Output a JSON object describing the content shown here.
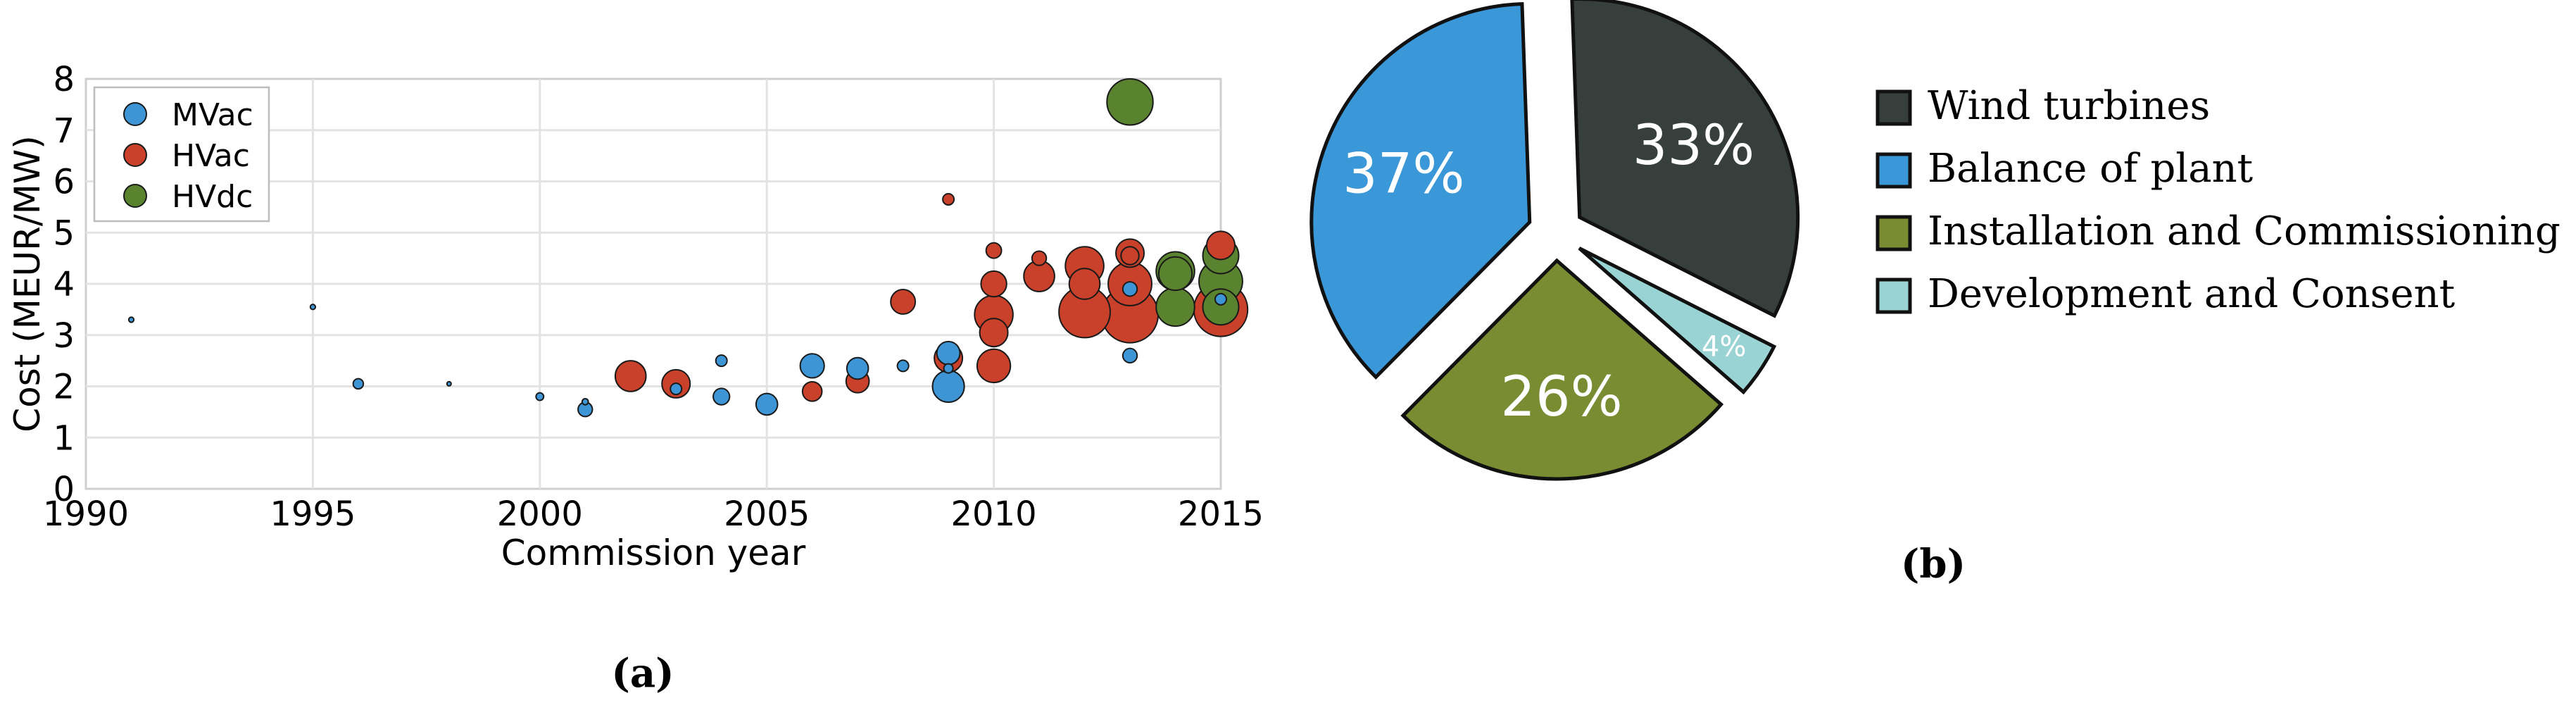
{
  "chart_data": [
    {
      "type": "scatter",
      "panel_label": "(a)",
      "xlabel": "Commission year",
      "ylabel": "Cost (MEUR/MW)",
      "xlim": [
        1990,
        2015
      ],
      "ylim": [
        0,
        8
      ],
      "x_ticks": [
        "1990",
        "1995",
        "2000",
        "2005",
        "2010",
        "2015"
      ],
      "y_ticks": [
        "0",
        "1",
        "2",
        "3",
        "4",
        "5",
        "6",
        "7",
        "8"
      ],
      "grid": true,
      "legend_position": "top-left",
      "series": [
        {
          "name": "MVac",
          "color": "#3d95d5",
          "points": [
            {
              "x": 1991,
              "y": 3.3,
              "r": 0.1
            },
            {
              "x": 1995,
              "y": 3.55,
              "r": 0.1
            },
            {
              "x": 1996,
              "y": 2.05,
              "r": 0.2
            },
            {
              "x": 1998,
              "y": 2.05,
              "r": 0.06
            },
            {
              "x": 2000,
              "y": 1.8,
              "r": 0.15
            },
            {
              "x": 2001,
              "y": 1.7,
              "r": 0.12
            },
            {
              "x": 2001,
              "y": 1.55,
              "r": 0.28
            },
            {
              "x": 2003,
              "y": 1.95,
              "r": 0.22
            },
            {
              "x": 2004,
              "y": 2.5,
              "r": 0.22
            },
            {
              "x": 2004,
              "y": 1.8,
              "r": 0.32
            },
            {
              "x": 2005,
              "y": 1.65,
              "r": 0.42
            },
            {
              "x": 2006,
              "y": 2.4,
              "r": 0.47
            },
            {
              "x": 2007,
              "y": 2.35,
              "r": 0.42
            },
            {
              "x": 2008,
              "y": 2.4,
              "r": 0.22
            },
            {
              "x": 2009,
              "y": 2.65,
              "r": 0.45
            },
            {
              "x": 2009,
              "y": 2.0,
              "r": 0.62
            },
            {
              "x": 2009,
              "y": 2.35,
              "r": 0.18
            },
            {
              "x": 2013,
              "y": 3.9,
              "r": 0.28
            },
            {
              "x": 2013,
              "y": 2.6,
              "r": 0.28
            },
            {
              "x": 2015,
              "y": 3.7,
              "r": 0.22
            }
          ]
        },
        {
          "name": "HVac",
          "color": "#c9412a",
          "points": [
            {
              "x": 2002,
              "y": 2.2,
              "r": 0.6
            },
            {
              "x": 2003,
              "y": 2.05,
              "r": 0.55
            },
            {
              "x": 2006,
              "y": 1.9,
              "r": 0.38
            },
            {
              "x": 2007,
              "y": 2.1,
              "r": 0.45
            },
            {
              "x": 2008,
              "y": 3.65,
              "r": 0.48
            },
            {
              "x": 2009,
              "y": 5.65,
              "r": 0.22
            },
            {
              "x": 2009,
              "y": 2.55,
              "r": 0.55
            },
            {
              "x": 2010,
              "y": 4.65,
              "r": 0.3
            },
            {
              "x": 2010,
              "y": 4.0,
              "r": 0.5
            },
            {
              "x": 2010,
              "y": 3.4,
              "r": 0.75
            },
            {
              "x": 2010,
              "y": 3.05,
              "r": 0.55
            },
            {
              "x": 2010,
              "y": 2.4,
              "r": 0.65
            },
            {
              "x": 2011,
              "y": 4.5,
              "r": 0.28
            },
            {
              "x": 2011,
              "y": 4.15,
              "r": 0.6
            },
            {
              "x": 2012,
              "y": 4.35,
              "r": 0.75
            },
            {
              "x": 2012,
              "y": 4.0,
              "r": 0.6
            },
            {
              "x": 2012,
              "y": 3.45,
              "r": 1.0
            },
            {
              "x": 2013,
              "y": 4.6,
              "r": 0.55
            },
            {
              "x": 2013,
              "y": 4.55,
              "r": 0.35
            },
            {
              "x": 2013,
              "y": 4.0,
              "r": 0.85
            },
            {
              "x": 2013,
              "y": 3.4,
              "r": 1.1
            },
            {
              "x": 2015,
              "y": 4.75,
              "r": 0.55
            },
            {
              "x": 2015,
              "y": 3.5,
              "r": 1.05
            }
          ]
        },
        {
          "name": "HVdc",
          "color": "#5a8330",
          "points": [
            {
              "x": 2013,
              "y": 7.55,
              "r": 0.9
            },
            {
              "x": 2014,
              "y": 4.25,
              "r": 0.75
            },
            {
              "x": 2014,
              "y": 4.2,
              "r": 0.65
            },
            {
              "x": 2014,
              "y": 3.55,
              "r": 0.75
            },
            {
              "x": 2015,
              "y": 4.55,
              "r": 0.7
            },
            {
              "x": 2015,
              "y": 4.05,
              "r": 0.85
            },
            {
              "x": 2015,
              "y": 3.55,
              "r": 0.7
            }
          ]
        }
      ]
    },
    {
      "type": "pie",
      "panel_label": "(b)",
      "legend_position": "right",
      "slices": [
        {
          "label": "Wind turbines",
          "value": 33,
          "display": "33%",
          "color": "#373f3d"
        },
        {
          "label": "Development and Consent",
          "value": 4,
          "display": "4%",
          "color": "#9ad3d4"
        },
        {
          "label": "Installation and Commissioning",
          "value": 26,
          "display": "26%",
          "color": "#798c32"
        },
        {
          "label": "Balance of plant",
          "value": 37,
          "display": "37%",
          "color": "#3a97d8"
        }
      ],
      "legend": [
        {
          "label": "Wind turbines",
          "color": "#373f3d"
        },
        {
          "label": "Balance of plant",
          "color": "#3a97d8"
        },
        {
          "label": "Installation and Commissioning",
          "color": "#798c32"
        },
        {
          "label": "Development and Consent",
          "color": "#9ad3d4"
        }
      ]
    }
  ]
}
